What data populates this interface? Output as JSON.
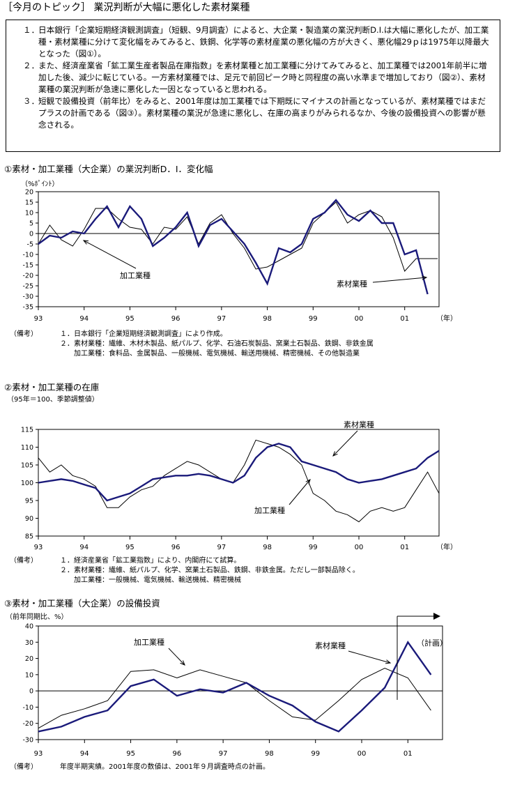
{
  "page_title": "［今月のトピック］ 業況判断が大幅に悪化した素材業種",
  "summary": [
    {
      "num": "１．",
      "text": "日本銀行「企業短期経済観測調査」（短観、9月調査）によると、大企業・製造業の業況判断D.I.は大幅に悪化したが、加工業種・素材業種に分けて変化幅をみてみると、鉄鋼、化学等の素材産業の悪化幅の方が大きく、悪化幅29ｐは1975年以降最大となった（図①）。"
    },
    {
      "num": "２．",
      "text": "また、経済産業省「鉱工業生産者製品在庫指数」を素材業種と加工業種に分けてみてみると、加工業種では2001年前半に増加した後、減少に転じている。一方素材業種では、足元で前回ピーク時と同程度の高い水準まで増加しており（図②）、素材業種の業況判断が急速に悪化した一因となっていると思われる。"
    },
    {
      "num": "３．",
      "text": "短観で設備投資（前年比）をみると、2001年度は加工業種では下期既にマイナスの計画となっているが、素材業種ではまだプラスの計画である（図③）。素材業種の業況が急速に悪化し、在庫の高まりがみられるなか、今後の設備投資への影響が懸念される。"
    }
  ],
  "chart_data": [
    {
      "type": "line",
      "title": "①素材・加工業種（大企業）の業況判断D．I．変化幅",
      "ylabel": "（%ﾎﾟｲﾝﾄ）",
      "xlabel": "（年）",
      "ylim": [
        -35,
        20
      ],
      "yticks": [
        20,
        15,
        10,
        5,
        0,
        -5,
        -10,
        -15,
        -20,
        -25,
        -30,
        -35
      ],
      "xlim": [
        1993.0,
        2001.75
      ],
      "x_tick_labels": [
        "93",
        "94",
        "95",
        "96",
        "97",
        "98",
        "99",
        "00",
        "01"
      ],
      "series": [
        {
          "name": "素材業種",
          "style": "bold",
          "x": [
            1993.0,
            1993.25,
            1993.5,
            1993.75,
            1994.0,
            1994.25,
            1994.5,
            1994.75,
            1995.0,
            1995.25,
            1995.5,
            1995.75,
            1996.0,
            1996.25,
            1996.5,
            1996.75,
            1997.0,
            1997.25,
            1997.5,
            1997.75,
            1998.0,
            1998.25,
            1998.5,
            1998.75,
            1999.0,
            1999.25,
            1999.5,
            1999.75,
            2000.0,
            2000.25,
            2000.5,
            2000.75,
            2001.0,
            2001.25,
            2001.5
          ],
          "values": [
            -5,
            -1,
            -2,
            1,
            0,
            7,
            13,
            3,
            13,
            7,
            -6,
            -2,
            3,
            10,
            -6,
            4,
            7,
            1,
            -5,
            -14,
            -24,
            -7,
            -9,
            -5,
            7,
            10,
            16,
            9,
            6,
            11,
            5,
            5,
            -10,
            -8,
            -29
          ]
        },
        {
          "name": "加工業種",
          "style": "thin",
          "x": [
            1993.0,
            1993.25,
            1993.5,
            1993.75,
            1994.0,
            1994.25,
            1994.5,
            1994.75,
            1995.0,
            1995.25,
            1995.5,
            1995.75,
            1996.0,
            1996.25,
            1996.5,
            1996.75,
            1997.0,
            1997.25,
            1997.5,
            1997.75,
            1998.0,
            1998.25,
            1998.5,
            1998.75,
            1999.0,
            1999.25,
            1999.5,
            1999.75,
            2000.0,
            2000.25,
            2000.5,
            2000.75,
            2001.0,
            2001.25,
            2001.5
          ],
          "values": [
            -5,
            4,
            -3,
            -6,
            2,
            12,
            12,
            7,
            3,
            2,
            -5,
            3,
            2,
            8,
            -5,
            5,
            9,
            0,
            -7,
            -17,
            -16,
            -13,
            -10,
            -7,
            5,
            10,
            15,
            5,
            9,
            11,
            8,
            -2,
            -18,
            -12,
            -12
          ]
        }
      ],
      "annotations": [
        "加工業種",
        "素材業種"
      ]
    },
    {
      "type": "line",
      "title": "②素材・加工業種の在庫",
      "ylabel": "（95年＝100、季節調整値）",
      "xlabel": "（年）",
      "ylim": [
        85,
        115
      ],
      "yticks": [
        115,
        110,
        105,
        100,
        95,
        90,
        85
      ],
      "xlim": [
        1993.0,
        2001.75
      ],
      "x_tick_labels": [
        "93",
        "94",
        "95",
        "96",
        "97",
        "98",
        "99",
        "00",
        "01"
      ],
      "series": [
        {
          "name": "素材業種",
          "style": "bold",
          "x": [
            1993.0,
            1993.25,
            1993.5,
            1993.75,
            1994.0,
            1994.25,
            1994.5,
            1994.75,
            1995.0,
            1995.25,
            1995.5,
            1995.75,
            1996.0,
            1996.25,
            1996.5,
            1996.75,
            1997.0,
            1997.25,
            1997.5,
            1997.75,
            1998.0,
            1998.25,
            1998.5,
            1998.75,
            1999.0,
            1999.25,
            1999.5,
            1999.75,
            2000.0,
            2000.25,
            2000.5,
            2000.75,
            2001.0,
            2001.25,
            2001.5,
            2001.75
          ],
          "values": [
            100,
            100.5,
            101,
            100.5,
            99.5,
            98.5,
            95,
            96,
            97,
            99,
            101,
            101.5,
            102,
            102,
            102.5,
            102,
            101,
            100,
            102,
            107,
            110,
            111,
            110,
            106,
            105,
            104,
            103,
            101,
            100,
            100.5,
            101,
            102,
            103,
            104,
            107,
            109
          ]
        },
        {
          "name": "加工業種",
          "style": "thin",
          "x": [
            1993.0,
            1993.25,
            1993.5,
            1993.75,
            1994.0,
            1994.25,
            1994.5,
            1994.75,
            1995.0,
            1995.25,
            1995.5,
            1995.75,
            1996.0,
            1996.25,
            1996.5,
            1996.75,
            1997.0,
            1997.25,
            1997.5,
            1997.75,
            1998.0,
            1998.25,
            1998.5,
            1998.75,
            1999.0,
            1999.25,
            1999.5,
            1999.75,
            2000.0,
            2000.25,
            2000.5,
            2000.75,
            2001.0,
            2001.25,
            2001.5,
            2001.75
          ],
          "values": [
            107,
            103,
            105,
            102,
            101,
            99,
            93,
            93,
            96,
            98,
            99,
            102,
            104,
            106,
            105,
            103,
            101,
            100,
            105,
            112,
            111,
            110,
            108,
            105,
            97,
            95,
            92,
            91,
            89,
            92,
            93,
            92,
            93,
            98,
            103,
            97
          ]
        }
      ],
      "annotations": [
        "素材業種",
        "加工業種"
      ]
    },
    {
      "type": "line",
      "title": "③素材・加工業種（大企業）の設備投資",
      "ylabel": "（前年同期比、%）",
      "ylim": [
        -30,
        40
      ],
      "yticks": [
        40,
        30,
        20,
        10,
        0,
        -10,
        -20,
        -30
      ],
      "xlim": [
        1993.0,
        2001.75
      ],
      "x_tick_labels": [
        "93",
        "94",
        "95",
        "96",
        "97",
        "98",
        "99",
        "00",
        "01"
      ],
      "series": [
        {
          "name": "素材業種",
          "style": "bold",
          "x": [
            1993.0,
            1993.5,
            1994.0,
            1994.5,
            1995.0,
            1995.5,
            1996.0,
            1996.5,
            1997.0,
            1997.5,
            1998.0,
            1998.5,
            1999.0,
            1999.5,
            2000.0,
            2000.5,
            2001.0,
            2001.5
          ],
          "values": [
            -25,
            -22,
            -16,
            -12,
            3,
            7,
            -3,
            1,
            -1,
            5,
            -3,
            -9,
            -19,
            -25,
            -12,
            2,
            30,
            10
          ]
        },
        {
          "name": "加工業種",
          "style": "thin",
          "x": [
            1993.0,
            1993.5,
            1994.0,
            1994.5,
            1995.0,
            1995.5,
            1996.0,
            1996.5,
            1997.0,
            1997.5,
            1998.0,
            1998.5,
            1999.0,
            1999.5,
            2000.0,
            2000.5,
            2001.0,
            2001.5
          ],
          "values": [
            -23,
            -15,
            -11,
            -6,
            12,
            13,
            8,
            13,
            9,
            5,
            -6,
            -16,
            -18,
            -6,
            7,
            14,
            8,
            -12
          ]
        }
      ],
      "plan_label": "計画",
      "annotations": [
        "加工業種",
        "素材業種"
      ]
    }
  ],
  "notes1": {
    "label": "（備考）",
    "items": [
      {
        "n": "１．",
        "t": "日本銀行「企業短期経済観測調査」により作成。"
      },
      {
        "n": "２．",
        "t": "素材業種：繊維、木材木製品、紙パルプ、化学、石油石炭製品、窯業土石製品、鉄鋼、非鉄金属"
      },
      {
        "n": "",
        "t": "加工業種：食料品、金属製品、一般機械、電気機械、輸送用機械、精密機械、その他製造業"
      }
    ]
  },
  "notes2": {
    "label": "（備考）",
    "items": [
      {
        "n": "１．",
        "t": "経済産業省「鉱工業指数」により、内閣府にて試算。"
      },
      {
        "n": "２．",
        "t": "素材業種：繊維、紙パルプ、化学、窯業土石製品、鉄鋼、非鉄金属。ただし一部製品除く。"
      },
      {
        "n": "",
        "t": "加工業種：一般機械、電気機械、輸送機械、精密機械"
      }
    ]
  },
  "notes3": {
    "label": "（備考）",
    "items": [
      {
        "n": "",
        "t": "年度半期実績。2001年度の数値は、2001年９月調査時点の計画。"
      }
    ]
  },
  "colors": {
    "bold_series": "#1a1a7a",
    "thin_series": "#000000"
  }
}
